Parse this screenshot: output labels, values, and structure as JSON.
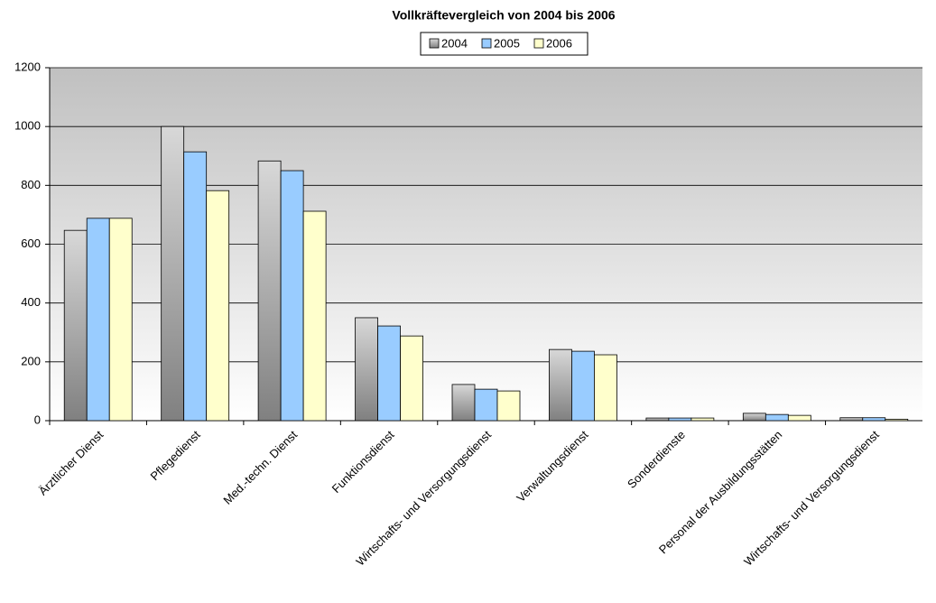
{
  "chart_data": {
    "type": "bar",
    "title": "Vollkräftevergleich von 2004 bis 2006",
    "categories": [
      "Ärztlicher Dienst",
      "Pflegedienst",
      "Med.-techn. Dienst",
      "Funktionsdienst",
      "Wirtschafts- und Versorgungsdienst",
      "Verwaltungsdienst",
      "Sonderdienste",
      "Personal der Ausbildungsstätten",
      "Wirtschafts- und Versorgungsdienst"
    ],
    "series": [
      {
        "name": "2004",
        "color": "#808080",
        "gradient": true,
        "values": [
          647,
          1000,
          883,
          350,
          123,
          242,
          9,
          25,
          10
        ]
      },
      {
        "name": "2005",
        "color": "#99ccff",
        "values": [
          688,
          914,
          850,
          322,
          107,
          236,
          9,
          21,
          10
        ]
      },
      {
        "name": "2006",
        "color": "#ffffcc",
        "values": [
          688,
          782,
          712,
          288,
          101,
          224,
          9,
          18,
          5
        ]
      }
    ],
    "ylim": [
      0,
      1200
    ],
    "yticks": [
      0,
      200,
      400,
      600,
      800,
      1000,
      1200
    ],
    "grid": true,
    "legend": "top"
  }
}
